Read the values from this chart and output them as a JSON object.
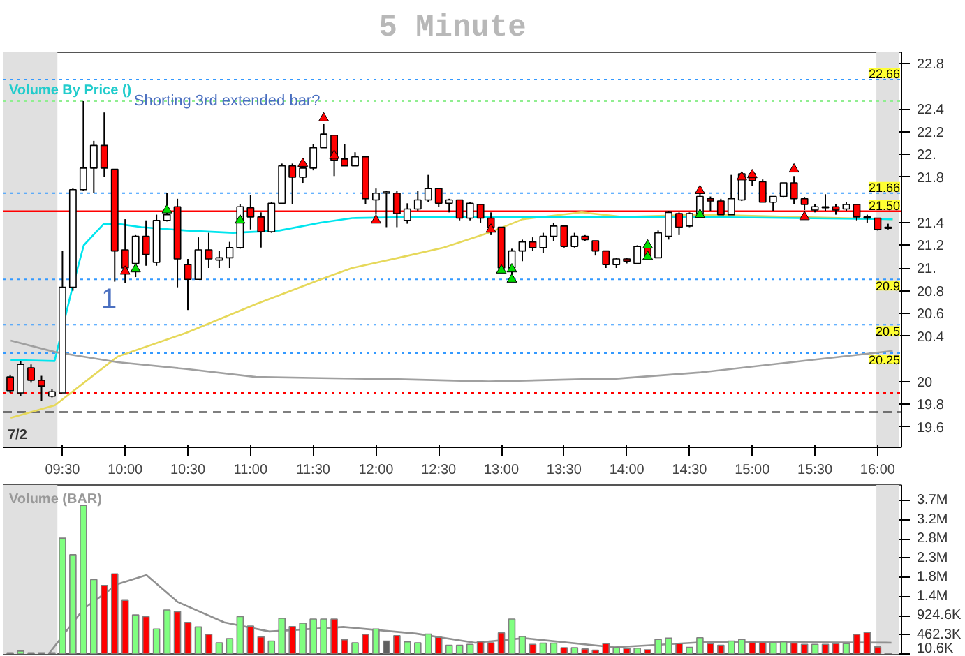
{
  "chart_data": [
    {
      "type": "candlestick",
      "title": "5 Minute",
      "x": [
        9.0833,
        9.1667,
        9.25,
        9.3333,
        9.4167,
        9.5,
        9.5833,
        9.6667,
        9.75,
        9.8333,
        9.9167,
        10,
        10.0833,
        10.1667,
        10.25,
        10.3333,
        10.4167,
        10.5,
        10.5833,
        10.6667,
        10.75,
        10.8333,
        10.9167,
        11,
        11.0833,
        11.1667,
        11.25,
        11.3333,
        11.4167,
        11.5,
        11.5833,
        11.6667,
        11.75,
        11.8333,
        11.9167,
        12,
        12.0833,
        12.1667,
        12.25,
        12.3333,
        12.4167,
        12.5,
        12.5833,
        12.6667,
        12.75,
        12.8333,
        12.9167,
        13,
        13.0833,
        13.1667,
        13.25,
        13.3333,
        13.4167,
        13.5,
        13.5833,
        13.6667,
        13.75,
        13.8333,
        13.9167,
        14,
        14.0833,
        14.1667,
        14.25,
        14.3333,
        14.4167,
        14.5,
        14.5833,
        14.6667,
        14.75,
        14.8333,
        14.9167,
        15,
        15.0833,
        15.1667,
        15.25,
        15.3333,
        15.4167,
        15.5,
        15.5833,
        15.6667,
        15.75,
        15.8333,
        15.9167,
        16,
        16.0833
      ],
      "ohlc": [
        [
          20.04,
          20.06,
          19.9,
          19.92
        ],
        [
          19.9,
          20.18,
          19.87,
          20.15
        ],
        [
          20.12,
          20.15,
          19.99,
          20.01
        ],
        [
          20.01,
          20.05,
          19.83,
          19.96
        ],
        [
          19.87,
          19.93,
          19.86,
          19.91
        ],
        [
          19.9,
          21.15,
          19.9,
          20.83
        ],
        [
          20.83,
          21.7,
          20.8,
          21.69
        ],
        [
          21.69,
          22.47,
          21.68,
          21.88
        ],
        [
          21.88,
          22.12,
          21.66,
          22.08
        ],
        [
          22.08,
          22.37,
          21.8,
          21.88
        ],
        [
          21.87,
          21.87,
          20.88,
          21.15
        ],
        [
          21.16,
          21.43,
          20.87,
          21.0
        ],
        [
          21.04,
          21.29,
          20.92,
          21.28
        ],
        [
          21.28,
          21.42,
          21.02,
          21.12
        ],
        [
          21.05,
          21.47,
          21.02,
          21.42
        ],
        [
          21.42,
          21.66,
          21.41,
          21.47
        ],
        [
          21.54,
          21.61,
          20.83,
          21.08
        ],
        [
          21.03,
          21.08,
          20.63,
          20.9
        ],
        [
          20.9,
          21.27,
          20.9,
          21.16
        ],
        [
          21.16,
          21.31,
          21.0,
          21.08
        ],
        [
          21.07,
          21.15,
          21.0,
          21.09
        ],
        [
          21.09,
          21.23,
          21.0,
          21.18
        ],
        [
          21.18,
          21.56,
          21.17,
          21.54
        ],
        [
          21.53,
          21.64,
          21.34,
          21.45
        ],
        [
          21.45,
          21.49,
          21.18,
          21.32
        ],
        [
          21.32,
          21.58,
          21.31,
          21.57
        ],
        [
          21.57,
          21.92,
          21.56,
          21.9
        ],
        [
          21.9,
          21.92,
          21.56,
          21.8
        ],
        [
          21.8,
          21.97,
          21.75,
          21.88
        ],
        [
          21.88,
          22.09,
          21.86,
          22.06
        ],
        [
          22.06,
          22.27,
          22.06,
          22.18
        ],
        [
          22.17,
          22.17,
          21.81,
          21.95
        ],
        [
          21.96,
          22.09,
          21.9,
          21.9
        ],
        [
          21.9,
          22.02,
          21.9,
          21.98
        ],
        [
          21.98,
          21.98,
          21.56,
          21.61
        ],
        [
          21.6,
          21.7,
          21.47,
          21.66
        ],
        [
          21.66,
          21.68,
          21.36,
          21.67
        ],
        [
          21.66,
          21.68,
          21.36,
          21.48
        ],
        [
          21.42,
          21.57,
          21.39,
          21.52
        ],
        [
          21.52,
          21.68,
          21.5,
          21.6
        ],
        [
          21.6,
          21.82,
          21.58,
          21.7
        ],
        [
          21.7,
          21.7,
          21.54,
          21.57
        ],
        [
          21.57,
          21.61,
          21.49,
          21.6
        ],
        [
          21.6,
          21.6,
          21.42,
          21.44
        ],
        [
          21.44,
          21.58,
          21.42,
          21.57
        ],
        [
          21.56,
          21.56,
          21.4,
          21.44
        ],
        [
          21.44,
          21.49,
          21.29,
          21.36
        ],
        [
          21.36,
          21.36,
          20.99,
          21.0
        ],
        [
          21.0,
          21.17,
          20.9,
          21.15
        ],
        [
          21.15,
          21.25,
          21.06,
          21.23
        ],
        [
          21.23,
          21.27,
          21.15,
          21.18
        ],
        [
          21.18,
          21.31,
          21.13,
          21.28
        ],
        [
          21.28,
          21.4,
          21.24,
          21.37
        ],
        [
          21.37,
          21.37,
          21.18,
          21.19
        ],
        [
          21.19,
          21.31,
          21.18,
          21.28
        ],
        [
          21.28,
          21.29,
          21.24,
          21.25
        ],
        [
          21.24,
          21.24,
          21.11,
          21.15
        ],
        [
          21.15,
          21.15,
          21.0,
          21.03
        ],
        [
          21.03,
          21.09,
          21.0,
          21.08
        ],
        [
          21.08,
          21.09,
          21.04,
          21.06
        ],
        [
          21.04,
          21.2,
          21.04,
          21.19
        ],
        [
          21.18,
          21.2,
          21.09,
          21.09
        ],
        [
          21.09,
          21.33,
          21.09,
          21.31
        ],
        [
          21.28,
          21.5,
          21.25,
          21.49
        ],
        [
          21.48,
          21.49,
          21.29,
          21.36
        ],
        [
          21.37,
          21.49,
          21.36,
          21.48
        ],
        [
          21.48,
          21.66,
          21.48,
          21.63
        ],
        [
          21.61,
          21.63,
          21.5,
          21.59
        ],
        [
          21.59,
          21.61,
          21.47,
          21.47
        ],
        [
          21.47,
          21.82,
          21.47,
          21.61
        ],
        [
          21.6,
          21.84,
          21.59,
          21.83
        ],
        [
          21.83,
          21.84,
          21.72,
          21.77
        ],
        [
          21.76,
          21.78,
          21.58,
          21.58
        ],
        [
          21.58,
          21.63,
          21.5,
          21.63
        ],
        [
          21.63,
          21.75,
          21.62,
          21.75
        ],
        [
          21.75,
          21.81,
          21.56,
          21.61
        ],
        [
          21.61,
          21.62,
          21.51,
          21.56
        ],
        [
          21.51,
          21.56,
          21.49,
          21.54
        ],
        [
          21.53,
          21.65,
          21.5,
          21.54
        ],
        [
          21.54,
          21.56,
          21.47,
          21.51
        ],
        [
          21.52,
          21.58,
          21.5,
          21.56
        ],
        [
          21.56,
          21.56,
          21.42,
          21.45
        ],
        [
          21.44,
          21.47,
          21.4,
          21.45
        ],
        [
          21.44,
          21.44,
          21.33,
          21.34
        ],
        [
          21.35,
          21.39,
          21.34,
          21.36
        ]
      ],
      "colors": [
        "#ff0000",
        "#ffffff",
        "#ff0000",
        "#ff0000",
        "#ffffff",
        "#ffffff",
        "#ffffff",
        "#ffffff",
        "#ffffff",
        "#ff0000",
        "#ff0000",
        "#ff0000",
        "#ffffff",
        "#ff0000",
        "#ffffff",
        "#ffffff",
        "#ff0000",
        "#ff0000",
        "#ffffff",
        "#ff0000",
        "#ffffff",
        "#ffffff",
        "#ffffff",
        "#ff0000",
        "#ff0000",
        "#ffffff",
        "#ffffff",
        "#ff0000",
        "#ffffff",
        "#ffffff",
        "#ffffff",
        "#ff0000",
        "#ff0000",
        "#ffffff",
        "#ff0000",
        "#ffffff",
        "#ffffff",
        "#ff0000",
        "#ffffff",
        "#ffffff",
        "#ffffff",
        "#ff0000",
        "#ffffff",
        "#ff0000",
        "#ffffff",
        "#ff0000",
        "#ff0000",
        "#ff0000",
        "#ffffff",
        "#ffffff",
        "#ff0000",
        "#ffffff",
        "#ffffff",
        "#ff0000",
        "#ffffff",
        "#ff0000",
        "#ff0000",
        "#ff0000",
        "#ffffff",
        "#ff0000",
        "#ffffff",
        "#ff0000",
        "#ffffff",
        "#ffffff",
        "#ff0000",
        "#ffffff",
        "#ffffff",
        "#ff0000",
        "#ff0000",
        "#ffffff",
        "#ffffff",
        "#ff0000",
        "#ff0000",
        "#ffffff",
        "#ffffff",
        "#ff0000",
        "#ff0000",
        "#ffffff",
        "#ffffff",
        "#ff0000",
        "#ffffff",
        "#ff0000",
        "#ffffff",
        "#ff0000",
        "#ffffff"
      ],
      "series": [
        {
          "type": "line",
          "color": "#e6d85a",
          "x": [
            9.087,
            9.44,
            9.94,
            10.49,
            11.04,
            11.56,
            11.81,
            12.18,
            12.54,
            12.9,
            13.17,
            13.64,
            13.97,
            14.59,
            16.12
          ],
          "values": [
            19.68,
            19.79,
            20.22,
            20.43,
            20.68,
            20.9,
            21.0,
            21.09,
            21.18,
            21.31,
            21.43,
            21.49,
            21.45,
            21.47,
            21.43
          ]
        },
        {
          "type": "line",
          "color": "#00e5ee",
          "x": [
            9.087,
            9.437,
            9.58,
            9.67,
            9.83,
            9.94,
            10.13,
            10.49,
            10.86,
            11.23,
            11.56,
            11.81,
            12.32,
            13.42,
            14.59,
            16.12
          ],
          "values": [
            20.19,
            20.18,
            20.83,
            21.2,
            21.39,
            21.39,
            21.36,
            21.33,
            21.31,
            21.33,
            21.4,
            21.44,
            21.45,
            21.45,
            21.45,
            21.43
          ]
        },
        {
          "type": "line",
          "color": "#a0a0a0",
          "x": [
            9.087,
            9.44,
            9.94,
            10.49,
            11.04,
            11.56,
            12.18,
            12.9,
            13.64,
            13.86,
            14.59,
            16.12
          ],
          "values": [
            20.36,
            20.26,
            20.17,
            20.11,
            20.04,
            20.03,
            20.02,
            20.0,
            20.02,
            20.02,
            20.08,
            20.27
          ]
        },
        {
          "type": "scatter",
          "marker": "triangle",
          "color": "#ff0000",
          "x": [
            10,
            11.4167,
            11.5833,
            11.6667,
            12,
            12.9167,
            14.5833,
            14.9167,
            15,
            15.3333,
            15.4167
          ],
          "values": [
            20.97,
            21.92,
            22.32,
            21.99,
            21.42,
            21.34,
            21.68,
            21.8,
            21.82,
            21.87,
            21.45
          ]
        },
        {
          "type": "scatter",
          "marker": "triangle",
          "color": "#00dd00",
          "x": [
            10.0833,
            10.3333,
            10.9167,
            13,
            13.0833,
            13.0833,
            14.1667,
            14.1667,
            14.5833
          ],
          "values": [
            20.99,
            21.51,
            21.42,
            20.98,
            20.99,
            20.9,
            21.2,
            21.1,
            21.47
          ]
        }
      ],
      "xlim": [
        9.03,
        16.19
      ],
      "ylim": [
        19.42,
        22.9
      ],
      "xticks": [
        {
          "value": 9.5,
          "label": "09:30"
        },
        {
          "value": 10,
          "label": "10:00"
        },
        {
          "value": 10.5,
          "label": "10:30"
        },
        {
          "value": 11,
          "label": "11:00"
        },
        {
          "value": 11.5,
          "label": "11:30"
        },
        {
          "value": 12,
          "label": "12:00"
        },
        {
          "value": 12.5,
          "label": "12:30"
        },
        {
          "value": 13,
          "label": "13:00"
        },
        {
          "value": 13.5,
          "label": "13:30"
        },
        {
          "value": 14,
          "label": "14:00"
        },
        {
          "value": 14.5,
          "label": "14:30"
        },
        {
          "value": 15,
          "label": "15:00"
        },
        {
          "value": 15.5,
          "label": "15:30"
        },
        {
          "value": 16,
          "label": "16:00"
        }
      ],
      "yticks": [
        19.6,
        19.8,
        20,
        20.4,
        20.6,
        20.8,
        {
          "value": 21,
          "label": "21."
        },
        21.2,
        21.4,
        21.8,
        {
          "value": 22,
          "label": "22."
        },
        22.2,
        22.4,
        22.8
      ],
      "ref_lines": [
        {
          "axis": "y",
          "value": 22.66,
          "label": "22.66",
          "color": "#3399ff",
          "line_style": "dotted"
        },
        {
          "axis": "y",
          "value": 22.47,
          "color": "#90ee90",
          "line_style": "dotted"
        },
        {
          "axis": "y",
          "value": 21.66,
          "label": "21.66",
          "color": "#3399ff",
          "line_style": "dotted"
        },
        {
          "axis": "y",
          "value": 21.5,
          "label": "21.50",
          "color": "#ff0000",
          "line_style": "solid"
        },
        {
          "axis": "y",
          "value": 20.9,
          "label": "20.9",
          "color": "#3399ff",
          "line_style": "dotted"
        },
        {
          "axis": "y",
          "value": 20.5,
          "label": "20.5",
          "color": "#3399ff",
          "line_style": "dotted"
        },
        {
          "axis": "y",
          "value": 20.25,
          "label": "20.25",
          "color": "#3399ff",
          "line_style": "dotted"
        },
        {
          "axis": "y",
          "value": 19.9,
          "color": "#ff0000",
          "line_style": "dotted"
        },
        {
          "axis": "y",
          "value": 19.73,
          "color": "#000000",
          "line_style": "dashed"
        }
      ],
      "bands": [
        {
          "axis": "x",
          "from": 9.03,
          "to": 9.46,
          "color": "#e0e0e0"
        },
        {
          "axis": "x",
          "from": 15.99,
          "to": 16.17,
          "color": "#e0e0e0"
        }
      ],
      "annotations": [
        "Volume By Price ()",
        "7/2",
        "1",
        {
          "text": "Shorting 3rd extended bar?",
          "x": 10.07,
          "y": 22.47
        }
      ]
    },
    {
      "type": "bar",
      "title": "Volume (BAR)",
      "tick_labels": "y",
      "x": [
        9.0833,
        9.1667,
        9.25,
        9.3333,
        9.4167,
        9.5,
        9.5833,
        9.6667,
        9.75,
        9.8333,
        9.9167,
        10,
        10.0833,
        10.1667,
        10.25,
        10.3333,
        10.4167,
        10.5,
        10.5833,
        10.6667,
        10.75,
        10.8333,
        10.9167,
        11,
        11.0833,
        11.1667,
        11.25,
        11.3333,
        11.4167,
        11.5,
        11.5833,
        11.6667,
        11.75,
        11.8333,
        11.9167,
        12,
        12.0833,
        12.1667,
        12.25,
        12.3333,
        12.4167,
        12.5,
        12.5833,
        12.6667,
        12.75,
        12.8333,
        12.9167,
        13,
        13.0833,
        13.1667,
        13.25,
        13.3333,
        13.4167,
        13.5,
        13.5833,
        13.6667,
        13.75,
        13.8333,
        13.9167,
        14,
        14.0833,
        14.1667,
        14.25,
        14.3333,
        14.4167,
        14.5,
        14.5833,
        14.6667,
        14.75,
        14.8333,
        14.9167,
        15,
        15.0833,
        15.1667,
        15.25,
        15.3333,
        15.4167,
        15.5,
        15.5833,
        15.6667,
        15.75,
        15.8333,
        15.9167,
        16,
        16.0833
      ],
      "values": [
        30000,
        70000,
        30000,
        30000,
        30000,
        2790000,
        2390000,
        3580000,
        1790000,
        1650000,
        1930000,
        1290000,
        940000,
        900000,
        600000,
        1060000,
        1020000,
        760000,
        650000,
        470000,
        270000,
        370000,
        900000,
        670000,
        410000,
        310000,
        860000,
        660000,
        740000,
        840000,
        840000,
        840000,
        340000,
        270000,
        470000,
        600000,
        310000,
        440000,
        290000,
        270000,
        480000,
        400000,
        210000,
        210000,
        230000,
        290000,
        270000,
        510000,
        840000,
        420000,
        230000,
        260000,
        260000,
        150000,
        150000,
        120000,
        90000,
        250000,
        160000,
        130000,
        140000,
        100000,
        350000,
        380000,
        250000,
        160000,
        390000,
        250000,
        210000,
        310000,
        350000,
        280000,
        270000,
        270000,
        290000,
        260000,
        230000,
        230000,
        230000,
        250000,
        250000,
        470000,
        520000,
        170000,
        10600
      ],
      "colors": [
        "#606060",
        "#80ff80",
        "#606060",
        "#606060",
        "#606060",
        "#80ff80",
        "#80ff80",
        "#80ff80",
        "#80ff80",
        "#ff0000",
        "#ff0000",
        "#ff0000",
        "#80ff80",
        "#ff0000",
        "#80ff80",
        "#80ff80",
        "#ff0000",
        "#ff0000",
        "#80ff80",
        "#ff0000",
        "#80ff80",
        "#80ff80",
        "#80ff80",
        "#ff0000",
        "#ff0000",
        "#80ff80",
        "#80ff80",
        "#ff0000",
        "#80ff80",
        "#80ff80",
        "#80ff80",
        "#ff0000",
        "#ff0000",
        "#80ff80",
        "#ff0000",
        "#80ff80",
        "#606060",
        "#ff0000",
        "#80ff80",
        "#80ff80",
        "#80ff80",
        "#ff0000",
        "#80ff80",
        "#80ff80",
        "#80ff80",
        "#ff0000",
        "#ff0000",
        "#ff0000",
        "#80ff80",
        "#80ff80",
        "#ff0000",
        "#80ff80",
        "#80ff80",
        "#ff0000",
        "#80ff80",
        "#ff0000",
        "#ff0000",
        "#ff0000",
        "#80ff80",
        "#ff0000",
        "#80ff80",
        "#ff0000",
        "#80ff80",
        "#80ff80",
        "#ff0000",
        "#80ff80",
        "#80ff80",
        "#ff0000",
        "#ff0000",
        "#80ff80",
        "#80ff80",
        "#ff0000",
        "#ff0000",
        "#80ff80",
        "#80ff80",
        "#ff0000",
        "#ff0000",
        "#80ff80",
        "#ff0000",
        "#ff0000",
        "#80ff80",
        "#ff0000",
        "#ff0000",
        "#ff0000",
        "#ff0000"
      ],
      "series": [
        {
          "type": "line",
          "color": "#909090",
          "x": [
            9.39,
            9.67,
            9.94,
            10.17,
            10.42,
            10.79,
            11.15,
            11.74,
            12.32,
            12.79,
            13.18,
            13.9,
            14.65,
            16.11
          ],
          "values": [
            0,
            1090000,
            1680000,
            1900000,
            1250000,
            760000,
            540000,
            650000,
            490000,
            270000,
            380000,
            160000,
            290000,
            270000
          ]
        }
      ],
      "xlim": [
        9.03,
        16.19
      ],
      "ylim": [
        0,
        4070000
      ],
      "yticks": [
        {
          "value": 10600,
          "label": "10.6K"
        },
        {
          "value": 462300,
          "label": "462.3K"
        },
        {
          "value": 924600,
          "label": "924.6K"
        },
        {
          "value": 1386900,
          "label": "1.4M"
        },
        {
          "value": 1849200,
          "label": "1.8M"
        },
        {
          "value": 2311500,
          "label": "2.3M"
        },
        {
          "value": 2773800,
          "label": "2.8M"
        },
        {
          "value": 3236100,
          "label": "3.2M"
        },
        {
          "value": 3698400,
          "label": "3.7M"
        }
      ],
      "bands": [
        {
          "axis": "x",
          "from": 9.03,
          "to": 9.46,
          "color": "#e0e0e0"
        },
        {
          "axis": "x",
          "from": 15.99,
          "to": 16.17,
          "color": "#e0e0e0"
        }
      ]
    }
  ]
}
